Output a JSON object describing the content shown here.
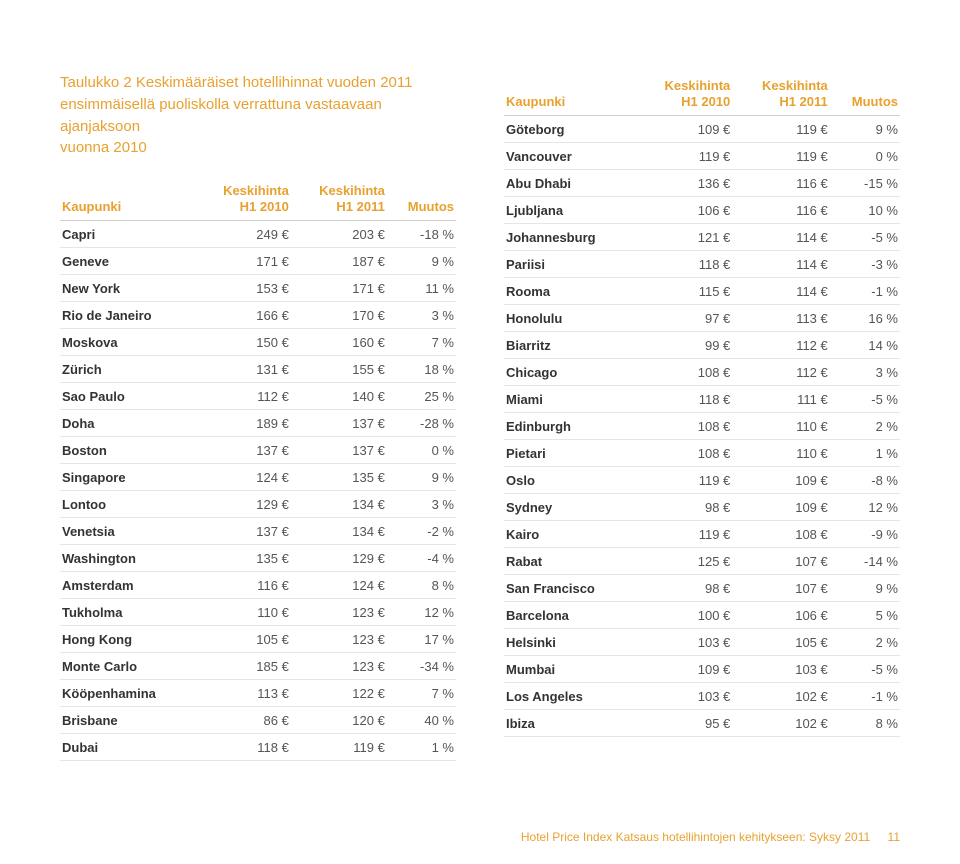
{
  "title_lines": [
    "Taulukko 2 Keskimääräiset hotellihinnat vuoden 2011",
    "ensimmäisellä puoliskolla verrattuna vastaavaan ajanjaksoon",
    "vuonna 2010"
  ],
  "headers": {
    "city": "Kaupunki",
    "h1_2010_a": "Keskihinta",
    "h1_2010_b": "H1 2010",
    "h1_2011_a": "Keskihinta",
    "h1_2011_b": "H1 2011",
    "change": "Muutos"
  },
  "colors": {
    "accent": "#e8a12f",
    "text": "#444444",
    "city_text": "#333333",
    "border_header": "#cfcfcf",
    "border_row": "#e6e6e6",
    "background": "#ffffff"
  },
  "table_left": [
    {
      "city": "Capri",
      "v2010": "249 €",
      "v2011": "203 €",
      "chg": "-18 %"
    },
    {
      "city": "Geneve",
      "v2010": "171 €",
      "v2011": "187 €",
      "chg": "9 %"
    },
    {
      "city": "New York",
      "v2010": "153 €",
      "v2011": "171 €",
      "chg": "11 %"
    },
    {
      "city": "Rio de Janeiro",
      "v2010": "166 €",
      "v2011": "170 €",
      "chg": "3 %"
    },
    {
      "city": "Moskova",
      "v2010": "150 €",
      "v2011": "160 €",
      "chg": "7 %"
    },
    {
      "city": "Zürich",
      "v2010": "131 €",
      "v2011": "155 €",
      "chg": "18 %"
    },
    {
      "city": "Sao Paulo",
      "v2010": "112 €",
      "v2011": "140 €",
      "chg": "25 %"
    },
    {
      "city": "Doha",
      "v2010": "189 €",
      "v2011": "137 €",
      "chg": "-28 %"
    },
    {
      "city": "Boston",
      "v2010": "137 €",
      "v2011": "137 €",
      "chg": "0 %"
    },
    {
      "city": "Singapore",
      "v2010": "124 €",
      "v2011": "135 €",
      "chg": "9 %"
    },
    {
      "city": "Lontoo",
      "v2010": "129 €",
      "v2011": "134 €",
      "chg": "3 %"
    },
    {
      "city": "Venetsia",
      "v2010": "137 €",
      "v2011": "134 €",
      "chg": "-2 %"
    },
    {
      "city": "Washington",
      "v2010": "135 €",
      "v2011": "129 €",
      "chg": "-4 %"
    },
    {
      "city": "Amsterdam",
      "v2010": "116 €",
      "v2011": "124 €",
      "chg": "8 %"
    },
    {
      "city": "Tukholma",
      "v2010": "110 €",
      "v2011": "123 €",
      "chg": "12 %"
    },
    {
      "city": "Hong Kong",
      "v2010": "105 €",
      "v2011": "123 €",
      "chg": "17 %"
    },
    {
      "city": "Monte Carlo",
      "v2010": "185 €",
      "v2011": "123 €",
      "chg": "-34 %"
    },
    {
      "city": "Kööpenhamina",
      "v2010": "113 €",
      "v2011": "122 €",
      "chg": "7 %"
    },
    {
      "city": "Brisbane",
      "v2010": "86 €",
      "v2011": "120 €",
      "chg": "40 %"
    },
    {
      "city": "Dubai",
      "v2010": "118 €",
      "v2011": "119 €",
      "chg": "1 %"
    }
  ],
  "table_right": [
    {
      "city": "Göteborg",
      "v2010": "109 €",
      "v2011": "119 €",
      "chg": "9 %"
    },
    {
      "city": "Vancouver",
      "v2010": "119 €",
      "v2011": "119 €",
      "chg": "0 %"
    },
    {
      "city": "Abu Dhabi",
      "v2010": "136 €",
      "v2011": "116 €",
      "chg": "-15 %"
    },
    {
      "city": "Ljubljana",
      "v2010": "106 €",
      "v2011": "116 €",
      "chg": "10 %"
    },
    {
      "city": "Johannesburg",
      "v2010": "121 €",
      "v2011": "114 €",
      "chg": "-5 %"
    },
    {
      "city": "Pariisi",
      "v2010": "118 €",
      "v2011": "114 €",
      "chg": "-3 %"
    },
    {
      "city": "Rooma",
      "v2010": "115 €",
      "v2011": "114 €",
      "chg": "-1 %"
    },
    {
      "city": "Honolulu",
      "v2010": "97 €",
      "v2011": "113 €",
      "chg": "16 %"
    },
    {
      "city": "Biarritz",
      "v2010": "99 €",
      "v2011": "112 €",
      "chg": "14 %"
    },
    {
      "city": "Chicago",
      "v2010": "108 €",
      "v2011": "112 €",
      "chg": "3 %"
    },
    {
      "city": "Miami",
      "v2010": "118 €",
      "v2011": "111 €",
      "chg": "-5 %"
    },
    {
      "city": "Edinburgh",
      "v2010": "108 €",
      "v2011": "110 €",
      "chg": "2 %"
    },
    {
      "city": "Pietari",
      "v2010": "108 €",
      "v2011": "110 €",
      "chg": "1 %"
    },
    {
      "city": "Oslo",
      "v2010": "119 €",
      "v2011": "109 €",
      "chg": "-8 %"
    },
    {
      "city": "Sydney",
      "v2010": "98 €",
      "v2011": "109 €",
      "chg": "12 %"
    },
    {
      "city": "Kairo",
      "v2010": "119 €",
      "v2011": "108 €",
      "chg": "-9 %"
    },
    {
      "city": "Rabat",
      "v2010": "125 €",
      "v2011": "107 €",
      "chg": "-14 %"
    },
    {
      "city": "San Francisco",
      "v2010": "98 €",
      "v2011": "107 €",
      "chg": "9 %"
    },
    {
      "city": "Barcelona",
      "v2010": "100 €",
      "v2011": "106 €",
      "chg": "5 %"
    },
    {
      "city": "Helsinki",
      "v2010": "103 €",
      "v2011": "105 €",
      "chg": "2 %"
    },
    {
      "city": "Mumbai",
      "v2010": "109 €",
      "v2011": "103 €",
      "chg": "-5 %"
    },
    {
      "city": "Los Angeles",
      "v2010": "103 €",
      "v2011": "102 €",
      "chg": "-1 %"
    },
    {
      "city": "Ibiza",
      "v2010": "95 €",
      "v2011": "102 €",
      "chg": "8 %"
    }
  ],
  "footer": {
    "text": "Hotel Price Index Katsaus hotellihintojen kehitykseen: Syksy 2011",
    "page": "11"
  }
}
